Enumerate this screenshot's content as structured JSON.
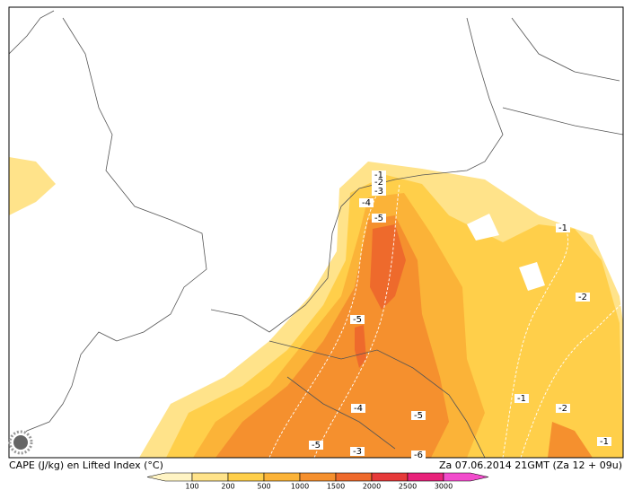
{
  "footer": {
    "title": "CAPE (J/kg) en Lifted Index (°C)",
    "valid_time": "Za 07.06.2014 21GMT (Za 12 + 09u)"
  },
  "legend": {
    "labels": [
      "100",
      "200",
      "500",
      "1000",
      "1500",
      "2000",
      "2500",
      "3000"
    ],
    "colors": [
      "#fff4c4",
      "#ffe38a",
      "#ffcf4a",
      "#fbb338",
      "#f5902e",
      "#ee6a2c",
      "#e63a3a",
      "#e8227a",
      "#f24ccc"
    ]
  },
  "contour_labels": [
    "-1",
    "-2",
    "-3",
    "-4",
    "-5",
    "-1",
    "-2",
    "-5",
    "-4",
    "-5",
    "-1",
    "-2",
    "-5",
    "-3",
    "-6",
    "-1"
  ]
}
